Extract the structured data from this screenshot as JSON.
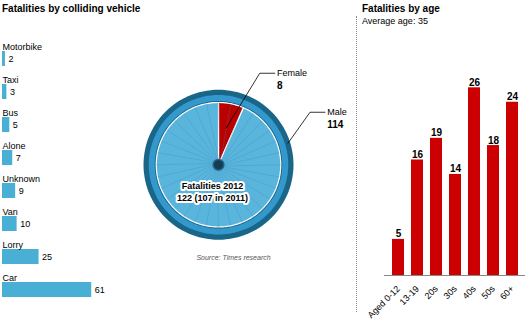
{
  "chart_data": [
    {
      "type": "bar",
      "orientation": "horizontal",
      "title": "Fatalities by colliding vehicle",
      "categories": [
        "Motorbike",
        "Taxi",
        "Bus",
        "Alone",
        "Unknown",
        "Van",
        "Lorry",
        "Car"
      ],
      "values": [
        2,
        3,
        5,
        7,
        9,
        10,
        25,
        61
      ],
      "color": "#4aafd5",
      "xlim": [
        0,
        80
      ],
      "tick_labels": "y",
      "data_labels": true,
      "grid": false
    },
    {
      "type": "pie",
      "categories": [
        "Female",
        "Male"
      ],
      "values": [
        8,
        114
      ],
      "colors": [
        "#bb0000",
        "#5ab5dc"
      ],
      "data_labels": true,
      "annotations": [
        "Fatalities 2012",
        "122 (107 in 2011)",
        "Source: Times research"
      ]
    },
    {
      "type": "bar",
      "title": "Fatalities by age",
      "subtitle": "Average age: 35",
      "categories": [
        "Aged 0-12",
        "13-19",
        "20s",
        "30s",
        "40s",
        "50s",
        "60+"
      ],
      "values": [
        5,
        16,
        19,
        14,
        26,
        18,
        24
      ],
      "color": "#cc0000",
      "ylim": [
        0,
        32
      ],
      "tick_labels": "x",
      "data_labels": true,
      "grid": false
    }
  ]
}
